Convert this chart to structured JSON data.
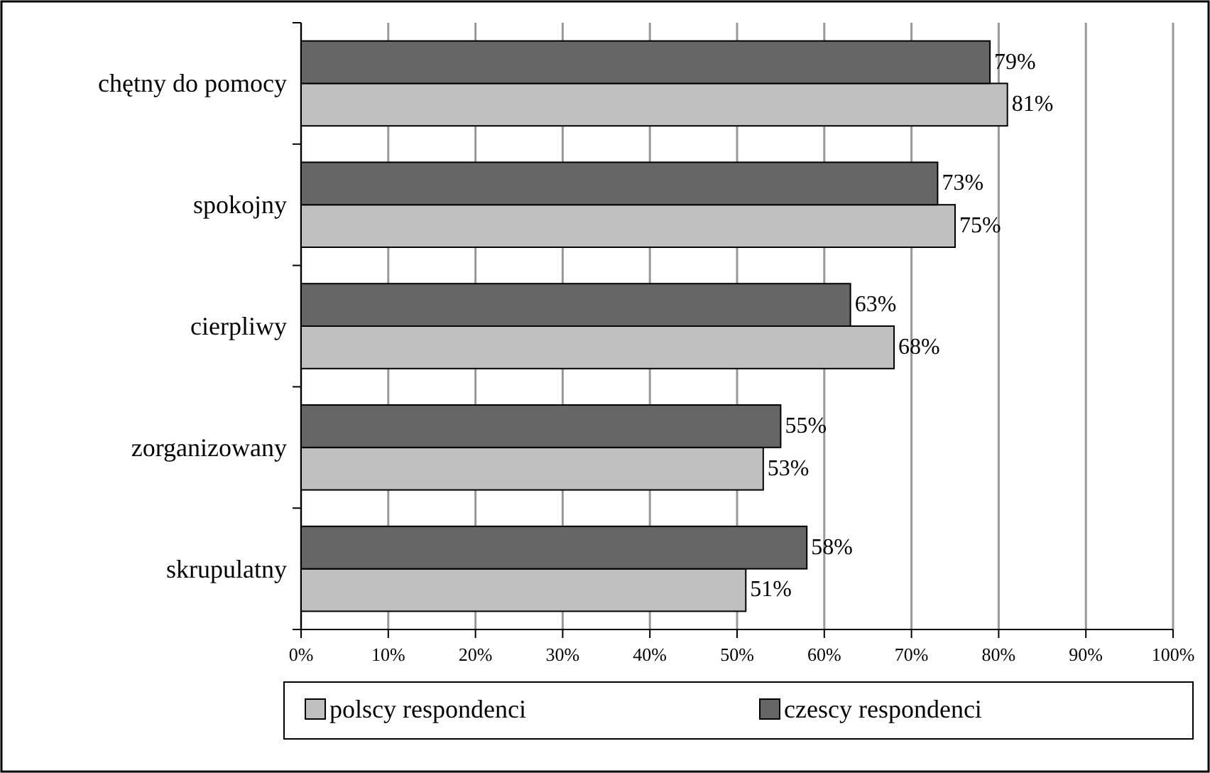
{
  "chart_data": {
    "type": "bar",
    "orientation": "horizontal",
    "categories": [
      "chętny do pomocy",
      "spokojny",
      "cierpliwy",
      "zorganizowany",
      "skrupulatny"
    ],
    "series": [
      {
        "name": "polscy respondenci",
        "color": "#c0c0c0",
        "values": [
          81,
          75,
          68,
          53,
          51
        ],
        "value_labels": [
          "81%",
          "75%",
          "68%",
          "53%",
          "51%"
        ]
      },
      {
        "name": "czescy respondenci",
        "color": "#666666",
        "values": [
          79,
          73,
          63,
          55,
          58
        ],
        "value_labels": [
          "79%",
          "73%",
          "63%",
          "55%",
          "58%"
        ]
      }
    ],
    "xlim": [
      0,
      100
    ],
    "xticks": [
      {
        "value": 0,
        "label": "0%"
      },
      {
        "value": 10,
        "label": "10%"
      },
      {
        "value": 20,
        "label": "20%"
      },
      {
        "value": 30,
        "label": "30%"
      },
      {
        "value": 40,
        "label": "40%"
      },
      {
        "value": 50,
        "label": "50%"
      },
      {
        "value": 60,
        "label": "60%"
      },
      {
        "value": 70,
        "label": "70%"
      },
      {
        "value": 80,
        "label": "80%"
      },
      {
        "value": 90,
        "label": "90%"
      },
      {
        "value": 100,
        "label": "100%"
      }
    ],
    "grid": "x",
    "legend": "bottom"
  }
}
